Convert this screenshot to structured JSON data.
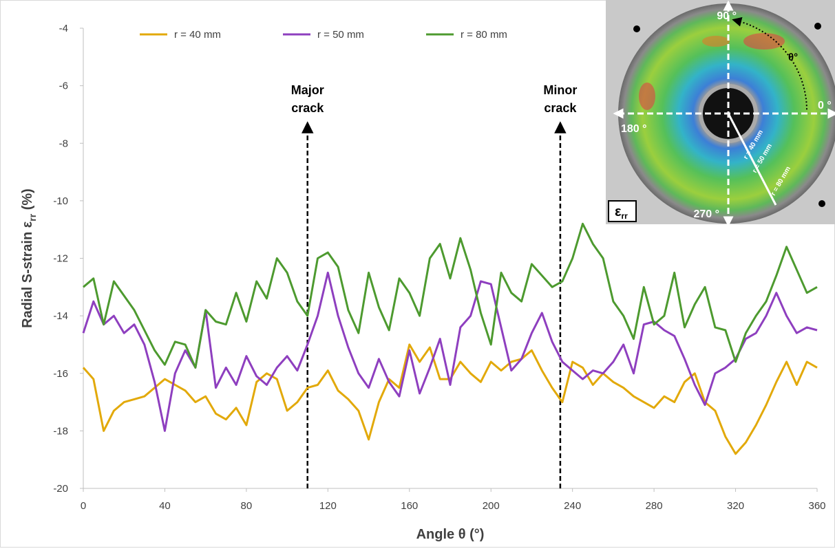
{
  "chart_data": {
    "type": "line",
    "ylabel": {
      "text": "Radial S-strain ε",
      "sub": "rr",
      "unit": " (%)"
    },
    "xlabel": "Angle θ (°)",
    "legend": "top",
    "x": [
      0,
      5,
      10,
      15,
      20,
      25,
      30,
      35,
      40,
      45,
      50,
      55,
      60,
      65,
      70,
      75,
      80,
      85,
      90,
      95,
      100,
      105,
      110,
      115,
      120,
      125,
      130,
      135,
      140,
      145,
      150,
      155,
      160,
      165,
      170,
      175,
      180,
      185,
      190,
      195,
      200,
      205,
      210,
      215,
      220,
      225,
      230,
      235,
      240,
      245,
      250,
      255,
      260,
      265,
      270,
      275,
      280,
      285,
      290,
      295,
      300,
      305,
      310,
      315,
      320,
      325,
      330,
      335,
      340,
      345,
      350,
      355,
      360
    ],
    "series": [
      {
        "name": "r = 40 mm",
        "color": "#e2a90a",
        "values": [
          -15.8,
          -16.2,
          -18,
          -17.3,
          -17,
          -16.9,
          -16.8,
          -16.5,
          -16.2,
          -16.4,
          -16.6,
          -17,
          -16.8,
          -17.4,
          -17.6,
          -17.2,
          -17.8,
          -16.3,
          -16,
          -16.2,
          -17.3,
          -17,
          -16.5,
          -16.4,
          -15.9,
          -16.6,
          -16.9,
          -17.3,
          -18.3,
          -17,
          -16.2,
          -16.5,
          -15,
          -15.6,
          -15.1,
          -16.2,
          -16.2,
          -15.6,
          -16,
          -16.3,
          -15.6,
          -15.9,
          -15.6,
          -15.5,
          -15.2,
          -15.9,
          -16.5,
          -17,
          -15.6,
          -15.8,
          -16.4,
          -16,
          -16.3,
          -16.5,
          -16.8,
          -17,
          -17.2,
          -16.8,
          -17,
          -16.3,
          -16,
          -17,
          -17.3,
          -18.2,
          -18.8,
          -18.4,
          -17.8,
          -17.1,
          -16.3,
          -15.6,
          -16.4,
          -15.6,
          -15.8
        ]
      },
      {
        "name": "r = 50 mm",
        "color": "#8e3fbf",
        "values": [
          -14.6,
          -13.5,
          -14.3,
          -14,
          -14.6,
          -14.3,
          -15,
          -16.3,
          -18,
          -16,
          -15.2,
          -15.8,
          -13.8,
          -16.5,
          -15.8,
          -16.4,
          -15.4,
          -16.1,
          -16.4,
          -15.8,
          -15.4,
          -15.9,
          -15,
          -14,
          -12.5,
          -14,
          -15.1,
          -16,
          -16.5,
          -15.5,
          -16.3,
          -16.8,
          -15.2,
          -16.7,
          -15.8,
          -14.8,
          -16.4,
          -14.4,
          -14,
          -12.8,
          -12.9,
          -14.4,
          -15.9,
          -15.5,
          -14.6,
          -13.9,
          -14.9,
          -15.6,
          -15.9,
          -16.2,
          -15.9,
          -16,
          -15.6,
          -15,
          -16,
          -14.3,
          -14.2,
          -14.5,
          -14.7,
          -15.5,
          -16.4,
          -17.1,
          -16,
          -15.8,
          -15.5,
          -14.8,
          -14.6,
          -14,
          -13.2,
          -14,
          -14.6,
          -14.4,
          -14.5
        ]
      },
      {
        "name": "r = 80 mm",
        "color": "#4d9a2f",
        "values": [
          -13,
          -12.7,
          -14.3,
          -12.8,
          -13.3,
          -13.8,
          -14.5,
          -15.2,
          -15.7,
          -14.9,
          -15,
          -15.8,
          -13.8,
          -14.2,
          -14.3,
          -13.2,
          -14.2,
          -12.8,
          -13.4,
          -12,
          -12.5,
          -13.5,
          -14,
          -12,
          -11.8,
          -12.3,
          -13.8,
          -14.6,
          -12.5,
          -13.7,
          -14.5,
          -12.7,
          -13.2,
          -14,
          -12,
          -11.5,
          -12.7,
          -11.3,
          -12.4,
          -13.9,
          -15,
          -12.5,
          -13.2,
          -13.5,
          -12.2,
          -12.6,
          -13,
          -12.8,
          -12,
          -10.8,
          -11.5,
          -12,
          -13.5,
          -14,
          -14.8,
          -13,
          -14.3,
          -14,
          -12.5,
          -14.4,
          -13.6,
          -13,
          -14.4,
          -14.5,
          -15.6,
          -14.6,
          -14,
          -13.5,
          -12.6,
          -11.6,
          -12.4,
          -13.2,
          -13
        ]
      }
    ],
    "xlim": [
      0,
      360
    ],
    "xticks": [
      0,
      40,
      80,
      120,
      160,
      200,
      240,
      280,
      320,
      360
    ],
    "ylim": [
      -20,
      -4
    ],
    "yticks": [
      -20,
      -18,
      -16,
      -14,
      -12,
      -10,
      -8,
      -6,
      -4
    ],
    "annotations": [
      {
        "lines": [
          "Major",
          "crack"
        ],
        "x": 110
      },
      {
        "lines": [
          "Minor",
          "crack"
        ],
        "x": 234
      }
    ],
    "inset": {
      "angles": [
        "90 °",
        "0 °",
        "180 °",
        "270 °"
      ],
      "theta": "θ°",
      "radii": [
        "r = 40 mm",
        "r = 50 mm",
        "r = 80 mm"
      ],
      "symbol": "ε",
      "symbol_sub": "rr"
    }
  }
}
